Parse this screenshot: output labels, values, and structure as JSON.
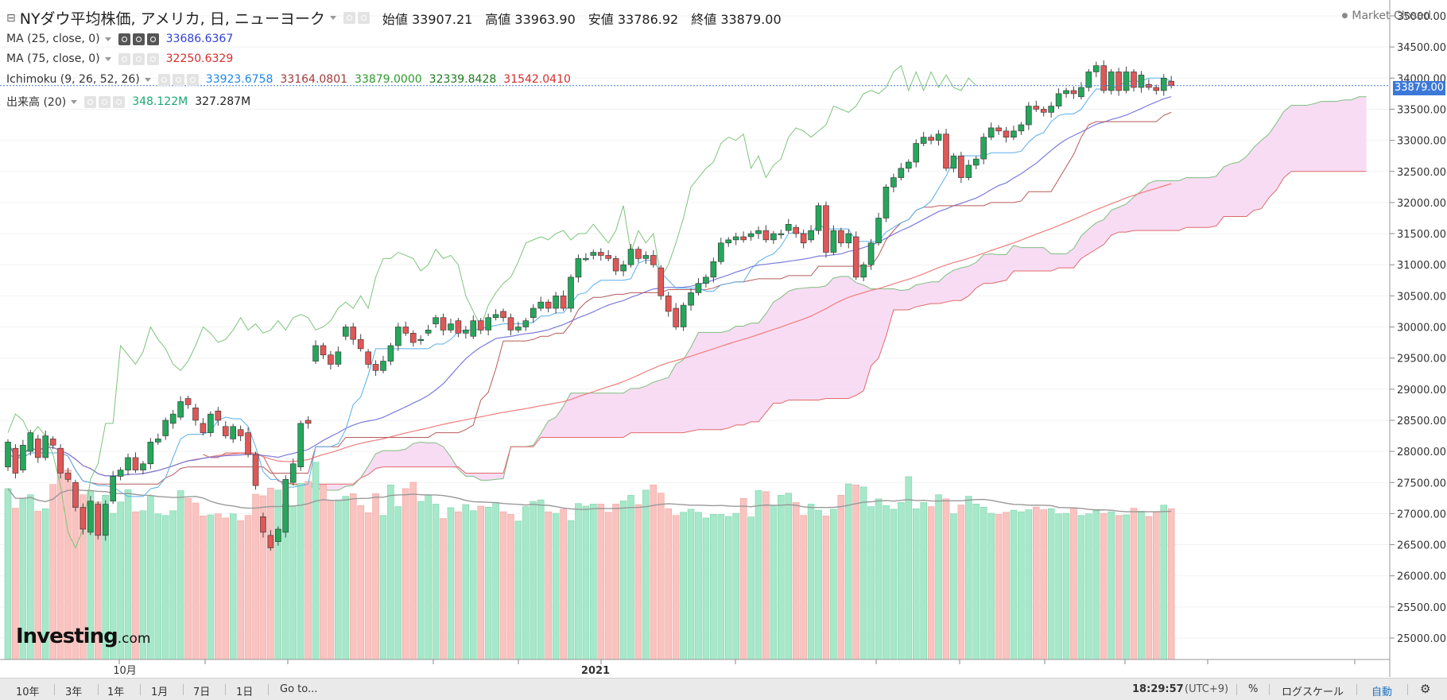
{
  "header": {
    "title": "NYダウ平均株価, アメリカ, 日, ニューヨーク",
    "open_label": "始値",
    "open": "33907.21",
    "high_label": "高値",
    "high": "33963.90",
    "low_label": "安値",
    "low": "33786.92",
    "close_label": "終値",
    "close": "33879.00",
    "market_status": "Market Closed"
  },
  "indicators": {
    "ma25": {
      "label": "MA (25, close, 0)",
      "value": "33686.6367",
      "color": "#2f3fd6"
    },
    "ma75": {
      "label": "MA (75, close, 0)",
      "value": "32250.6329",
      "color": "#d32f2f"
    },
    "ichimoku": {
      "label": "Ichimoku (9, 26, 52, 26)",
      "values": [
        "33923.6758",
        "33164.0801",
        "33879.0000",
        "32339.8428",
        "31542.0410"
      ],
      "colors": [
        "#1e88e5",
        "#a33a3a",
        "#2e9b2e",
        "#1f7a1f",
        "#d32f2f"
      ]
    },
    "volume": {
      "label": "出来高 (20)",
      "values": [
        "348.122M",
        "327.287M"
      ],
      "colors": [
        "#19a974",
        "#222222"
      ]
    }
  },
  "logo": {
    "brand": "Investing",
    "suffix": ".com"
  },
  "bottom_bar": {
    "ranges": [
      "10年",
      "3年",
      "1年",
      "1月",
      "7日",
      "1日"
    ],
    "goto": "Go to...",
    "time": "18:29:57",
    "tz": "(UTC+9)",
    "percent": "%",
    "log_scale": "ログスケール",
    "auto": "自動",
    "settings_icon": "gear-icon"
  },
  "colors": {
    "up": "#26a65b",
    "down": "#e05757",
    "vol_up": "#a6e8c9",
    "vol_down": "#f9c3c0",
    "cloud": "#f7d6f2",
    "last_price": "#3c78d8"
  },
  "chart_data": {
    "type": "candlestick",
    "title": "NYダウ平均株価",
    "x_labels": [
      "10月",
      "2021"
    ],
    "y_axis": {
      "min": 24700,
      "max": 35100,
      "ticks": [
        25000,
        25500,
        26000,
        26500,
        27000,
        27500,
        28000,
        28500,
        29000,
        29500,
        30000,
        30500,
        31000,
        31500,
        32000,
        32500,
        33000,
        33500,
        34000,
        34500,
        35000
      ]
    },
    "last_price": 33879.0,
    "candles": [
      [
        27750,
        28150
      ],
      [
        28050,
        27650
      ],
      [
        27700,
        28100
      ],
      [
        28000,
        28300
      ],
      [
        28200,
        27900
      ],
      [
        27900,
        28250
      ],
      [
        28200,
        28100
      ],
      [
        28050,
        27650
      ],
      [
        27650,
        27550
      ],
      [
        27500,
        27100
      ],
      [
        27100,
        26750
      ],
      [
        26700,
        27200
      ],
      [
        27150,
        26650
      ],
      [
        26650,
        27150
      ],
      [
        27200,
        27600
      ],
      [
        27600,
        27700
      ],
      [
        27700,
        27900
      ],
      [
        27900,
        27700
      ],
      [
        27700,
        27800
      ],
      [
        27800,
        28150
      ],
      [
        28150,
        28200
      ],
      [
        28250,
        28500
      ],
      [
        28450,
        28600
      ],
      [
        28550,
        28800
      ],
      [
        28850,
        28750
      ],
      [
        28700,
        28500
      ],
      [
        28450,
        28300
      ],
      [
        28300,
        28600
      ],
      [
        28650,
        28500
      ],
      [
        28400,
        28250
      ],
      [
        28200,
        28400
      ],
      [
        28350,
        28250
      ],
      [
        28300,
        27950
      ],
      [
        27950,
        27450
      ],
      [
        26950,
        26700
      ],
      [
        26650,
        26450
      ],
      [
        26550,
        26750
      ],
      [
        26700,
        27550
      ],
      [
        27500,
        27800
      ],
      [
        27750,
        28450
      ],
      [
        28500,
        28450
      ],
      [
        29450,
        29700
      ],
      [
        29700,
        29550
      ],
      [
        29550,
        29400
      ],
      [
        29400,
        29600
      ],
      [
        29850,
        30000
      ],
      [
        30000,
        29800
      ],
      [
        29800,
        29650
      ],
      [
        29600,
        29400
      ],
      [
        29400,
        29300
      ],
      [
        29300,
        29450
      ],
      [
        29450,
        29700
      ],
      [
        29700,
        30000
      ],
      [
        30000,
        29900
      ],
      [
        29900,
        29750
      ],
      [
        29800,
        29800
      ],
      [
        29900,
        29950
      ],
      [
        30050,
        30150
      ],
      [
        30150,
        29950
      ],
      [
        29950,
        30050
      ],
      [
        30100,
        29900
      ],
      [
        29900,
        29950
      ],
      [
        29850,
        30100
      ],
      [
        30100,
        29950
      ],
      [
        29950,
        30150
      ],
      [
        30150,
        30200
      ],
      [
        30250,
        30150
      ],
      [
        30150,
        29950
      ],
      [
        29950,
        30000
      ],
      [
        30000,
        30100
      ],
      [
        30150,
        30300
      ],
      [
        30300,
        30400
      ],
      [
        30400,
        30300
      ],
      [
        30300,
        30500
      ],
      [
        30500,
        30300
      ],
      [
        30300,
        30800
      ],
      [
        30800,
        31100
      ],
      [
        31100,
        31100
      ],
      [
        31150,
        31200
      ],
      [
        31200,
        31150
      ],
      [
        31150,
        31100
      ],
      [
        31100,
        30900
      ],
      [
        30900,
        31000
      ],
      [
        31000,
        31250
      ],
      [
        31250,
        31100
      ],
      [
        31100,
        31150
      ],
      [
        31150,
        31000
      ],
      [
        30950,
        30500
      ],
      [
        30500,
        30250
      ],
      [
        30300,
        30000
      ],
      [
        30000,
        30350
      ],
      [
        30350,
        30550
      ],
      [
        30550,
        30700
      ],
      [
        30700,
        30800
      ],
      [
        30800,
        31050
      ],
      [
        31050,
        31350
      ],
      [
        31350,
        31400
      ],
      [
        31400,
        31450
      ],
      [
        31450,
        31400
      ],
      [
        31450,
        31500
      ],
      [
        31500,
        31550
      ],
      [
        31550,
        31400
      ],
      [
        31400,
        31500
      ],
      [
        31500,
        31500
      ],
      [
        31550,
        31650
      ],
      [
        31600,
        31500
      ],
      [
        31500,
        31350
      ],
      [
        31400,
        31550
      ],
      [
        31550,
        31950
      ],
      [
        31950,
        31200
      ],
      [
        31200,
        31550
      ],
      [
        31550,
        31350
      ],
      [
        31350,
        31500
      ],
      [
        31450,
        30800
      ],
      [
        30800,
        31000
      ],
      [
        31000,
        31350
      ],
      [
        31350,
        31750
      ],
      [
        31750,
        32250
      ],
      [
        32250,
        32400
      ],
      [
        32400,
        32550
      ],
      [
        32550,
        32650
      ],
      [
        32650,
        32950
      ],
      [
        32950,
        33050
      ],
      [
        33050,
        33000
      ],
      [
        33000,
        33100
      ],
      [
        33100,
        32550
      ],
      [
        32550,
        32750
      ],
      [
        32750,
        32400
      ],
      [
        32400,
        32600
      ],
      [
        32600,
        32700
      ],
      [
        32700,
        33050
      ],
      [
        33050,
        33200
      ],
      [
        33200,
        33150
      ],
      [
        33150,
        33050
      ],
      [
        33050,
        33150
      ],
      [
        33150,
        33250
      ],
      [
        33250,
        33550
      ],
      [
        33550,
        33500
      ],
      [
        33500,
        33450
      ],
      [
        33450,
        33550
      ],
      [
        33550,
        33750
      ],
      [
        33750,
        33800
      ],
      [
        33800,
        33750
      ],
      [
        33700,
        33850
      ],
      [
        33850,
        34100
      ],
      [
        34100,
        34200
      ],
      [
        34200,
        33800
      ],
      [
        33800,
        34100
      ],
      [
        34100,
        33800
      ],
      [
        33800,
        34100
      ],
      [
        34100,
        33850
      ],
      [
        33850,
        34050
      ],
      [
        33900,
        33850
      ],
      [
        33850,
        33800
      ],
      [
        33800,
        34000
      ],
      [
        33950,
        33879
      ]
    ],
    "volumes": [
      331,
      293,
      312,
      319,
      287,
      292,
      339,
      406,
      367,
      336,
      319,
      326,
      305,
      318,
      283,
      305,
      329,
      286,
      288,
      316,
      282,
      279,
      288,
      327,
      312,
      303,
      278,
      280,
      282,
      274,
      282,
      269,
      279,
      320,
      317,
      332,
      328,
      301,
      296,
      341,
      345,
      382,
      338,
      308,
      309,
      316,
      321,
      298,
      284,
      321,
      279,
      338,
      296,
      331,
      343,
      306,
      319,
      301,
      273,
      294,
      286,
      300,
      288,
      297,
      295,
      304,
      286,
      281,
      268,
      296,
      306,
      309,
      286,
      283,
      291,
      269,
      302,
      297,
      301,
      301,
      285,
      301,
      307,
      318,
      300,
      328,
      338,
      322,
      292,
      279,
      285,
      291,
      285,
      274,
      281,
      281,
      277,
      283,
      312,
      276,
      327,
      325,
      298,
      318,
      322,
      304,
      279,
      301,
      289,
      278,
      291,
      318,
      340,
      338,
      334,
      296,
      311,
      298,
      291,
      304,
      354,
      292,
      304,
      296,
      319,
      311,
      282,
      299,
      316,
      301,
      295,
      283,
      281,
      285,
      289,
      286,
      290,
      295,
      290,
      292,
      282,
      283,
      294,
      279,
      282,
      288,
      283,
      286,
      279,
      280,
      293,
      287,
      277,
      285,
      299,
      292
    ]
  }
}
